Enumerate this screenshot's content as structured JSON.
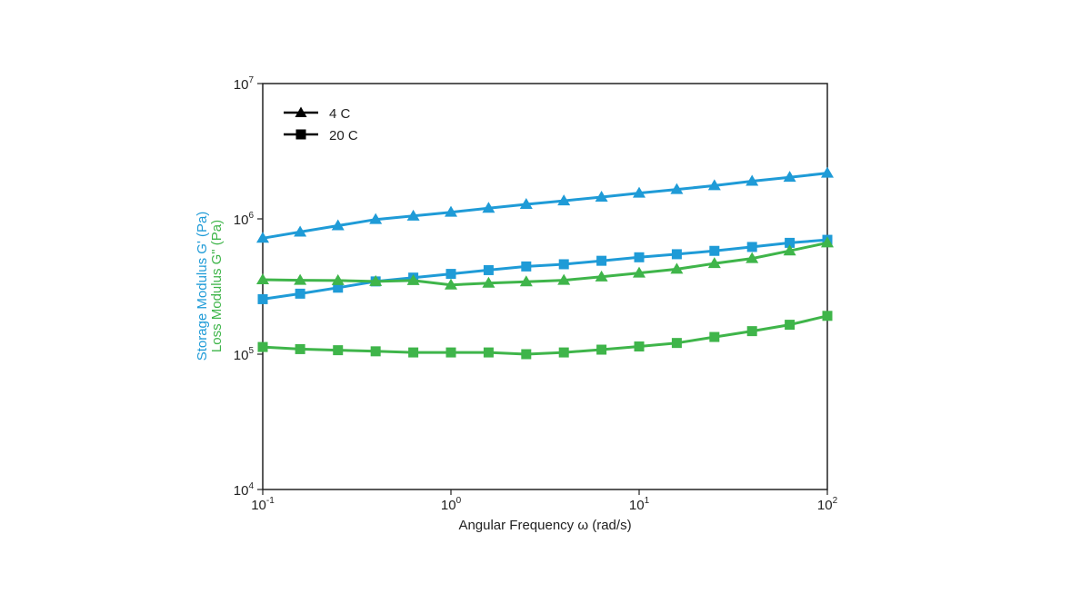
{
  "chart_data": {
    "type": "line",
    "xlabel": "Angular Frequency ω (rad/s)",
    "ylabel_storage": "Storage Modulus G' (Pa)",
    "ylabel_loss": "Loss Modulus G\" (Pa)",
    "x_scale": "log",
    "y_scale": "log",
    "xlim": [
      0.1,
      100
    ],
    "ylim": [
      10000,
      10000000
    ],
    "x_ticks": [
      {
        "value": 0.1,
        "base": "10",
        "exp": "-1"
      },
      {
        "value": 1,
        "base": "10",
        "exp": "0"
      },
      {
        "value": 10,
        "base": "10",
        "exp": "1"
      },
      {
        "value": 100,
        "base": "10",
        "exp": "2"
      }
    ],
    "y_ticks": [
      {
        "value": 10000,
        "base": "10",
        "exp": "4"
      },
      {
        "value": 100000,
        "base": "10",
        "exp": "5"
      },
      {
        "value": 1000000,
        "base": "10",
        "exp": "6"
      },
      {
        "value": 10000000,
        "base": "10",
        "exp": "7"
      }
    ],
    "grid": false,
    "legend": {
      "position": "top-left",
      "entries": [
        {
          "label": "4 C",
          "marker": "triangle"
        },
        {
          "label": "20 C",
          "marker": "square"
        }
      ]
    },
    "colors": {
      "storage": "#1f9bd7",
      "loss": "#3fb54a",
      "legend": "#000000"
    },
    "x": [
      0.1,
      0.158,
      0.251,
      0.398,
      0.631,
      1.0,
      1.585,
      2.512,
      3.981,
      6.31,
      10.0,
      15.85,
      25.12,
      39.81,
      63.1,
      100.0
    ],
    "series": [
      {
        "modulus": "storage",
        "temperature": "4 C",
        "marker": "triangle",
        "values": [
          720000,
          800000,
          890000,
          990000,
          1050000,
          1120000,
          1200000,
          1280000,
          1360000,
          1450000,
          1550000,
          1650000,
          1760000,
          1900000,
          2030000,
          2180000
        ]
      },
      {
        "modulus": "storage",
        "temperature": "20 C",
        "marker": "square",
        "values": [
          255000,
          280000,
          310000,
          345000,
          368000,
          392000,
          418000,
          445000,
          462000,
          490000,
          520000,
          548000,
          580000,
          620000,
          665000,
          700000
        ]
      },
      {
        "modulus": "loss",
        "temperature": "4 C",
        "marker": "triangle",
        "values": [
          355000,
          352000,
          350000,
          345000,
          350000,
          325000,
          335000,
          343000,
          352000,
          373000,
          398000,
          425000,
          468000,
          510000,
          580000,
          665000
        ]
      },
      {
        "modulus": "loss",
        "temperature": "20 C",
        "marker": "square",
        "values": [
          113000,
          109000,
          107000,
          105000,
          103000,
          103000,
          103000,
          100000,
          103000,
          108000,
          114000,
          121000,
          134000,
          148000,
          165000,
          192000
        ]
      }
    ]
  }
}
